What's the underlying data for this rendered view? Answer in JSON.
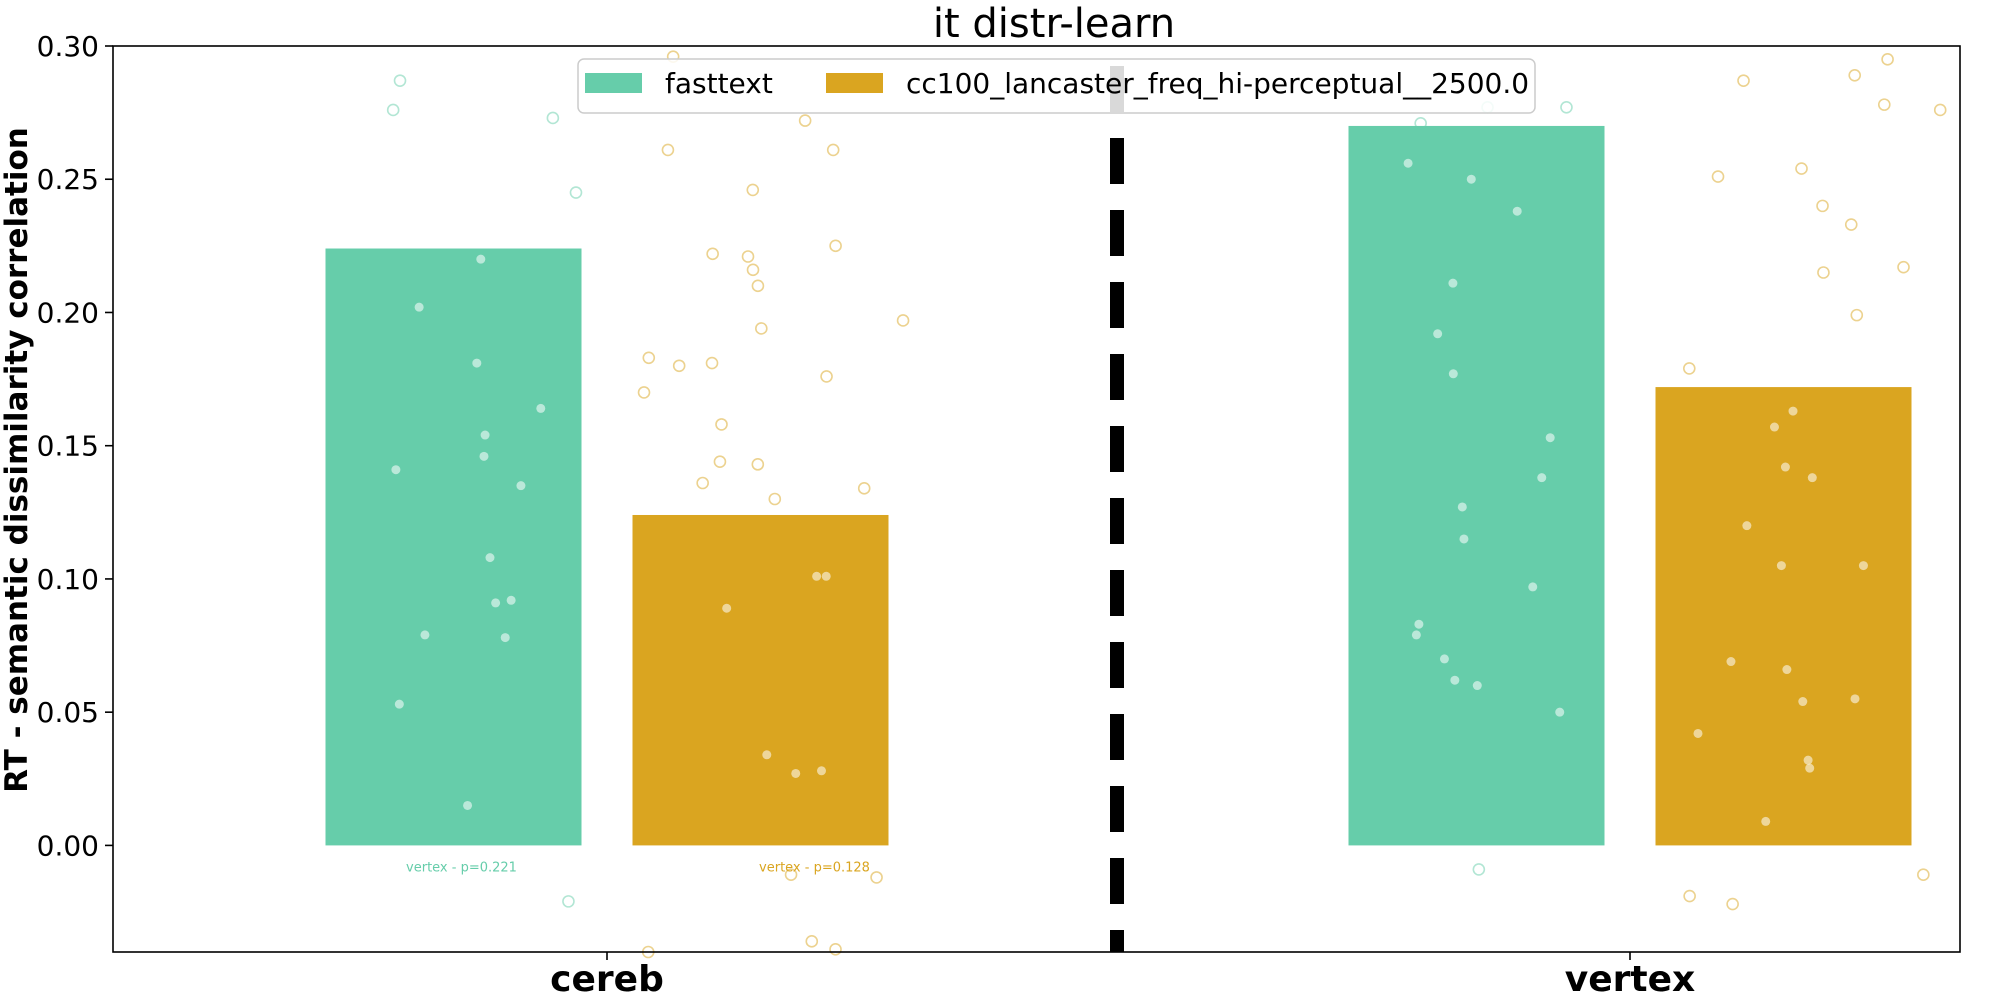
{
  "chart_data": {
    "type": "bar",
    "title": "it distr-learn",
    "xlabel": "",
    "ylabel": "RT - semantic dissimilarity correlation",
    "ylim": [
      -0.04,
      0.3
    ],
    "yticks": [
      0.0,
      0.05,
      0.1,
      0.15,
      0.2,
      0.25,
      0.3
    ],
    "ytick_labels": [
      "0.00",
      "0.05",
      "0.10",
      "0.15",
      "0.20",
      "0.25",
      "0.30"
    ],
    "categories": [
      "cereb",
      "vertex"
    ],
    "legend_position": "top-center",
    "series": [
      {
        "name": "fasttext",
        "color": "#66cdaa",
        "values": [
          0.224,
          0.27
        ],
        "annotations": [
          "vertex - p=0.221",
          ""
        ],
        "points_inside": [
          [
            0.22,
            0.202,
            0.181,
            0.164,
            0.154,
            0.146,
            0.141,
            0.135,
            0.108,
            0.092,
            0.091,
            0.079,
            0.078,
            0.053,
            0.015
          ],
          [
            0.256,
            0.25,
            0.238,
            0.211,
            0.192,
            0.177,
            0.153,
            0.138,
            0.127,
            0.115,
            0.097,
            0.083,
            0.079,
            0.07,
            0.062,
            0.06,
            0.05
          ]
        ],
        "points_outside": [
          [
            0.287,
            0.276,
            0.273,
            0.245,
            -0.021
          ],
          [
            0.277,
            0.277,
            0.271,
            -0.009
          ]
        ]
      },
      {
        "name": "cc100_lancaster_freq_hi-perceptual__2500.0",
        "color": "#daa520",
        "values": [
          0.124,
          0.172
        ],
        "annotations": [
          "vertex - p=0.128",
          ""
        ],
        "points_inside": [
          [
            0.101,
            0.101,
            0.089,
            0.034,
            0.028,
            0.027
          ],
          [
            0.163,
            0.157,
            0.142,
            0.138,
            0.12,
            0.105,
            0.105,
            0.069,
            0.066,
            0.055,
            0.054,
            0.042,
            0.032,
            0.029,
            0.009
          ]
        ],
        "points_outside": [
          [
            0.296,
            0.272,
            0.261,
            0.261,
            0.246,
            0.225,
            0.222,
            0.221,
            0.216,
            0.21,
            0.197,
            0.194,
            0.183,
            0.181,
            0.18,
            0.176,
            0.17,
            0.158,
            0.144,
            0.143,
            0.136,
            0.134,
            0.13,
            -0.011,
            -0.012,
            -0.036,
            -0.039,
            -0.04
          ],
          [
            0.295,
            0.289,
            0.287,
            0.278,
            0.276,
            0.254,
            0.251,
            0.24,
            0.233,
            0.217,
            0.215,
            0.199,
            0.179,
            -0.011,
            -0.019,
            -0.022
          ]
        ]
      }
    ]
  }
}
